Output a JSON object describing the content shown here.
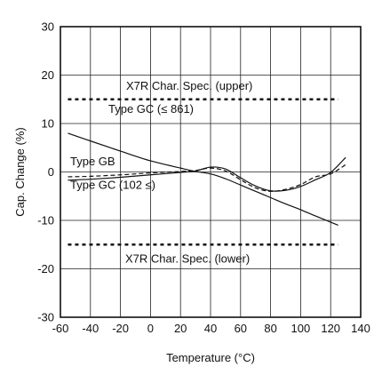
{
  "chart_data": {
    "type": "line",
    "title": "",
    "xlabel": "Temperature (°C)",
    "ylabel": "Cap. Change (%)",
    "xlim": [
      -60,
      140
    ],
    "ylim": [
      -30,
      30
    ],
    "x_ticks": [
      -60,
      -40,
      -20,
      0,
      20,
      40,
      60,
      80,
      100,
      120,
      140
    ],
    "y_ticks": [
      -30,
      -20,
      -10,
      0,
      10,
      20,
      30
    ],
    "grid": true,
    "legend": "none",
    "series": [
      {
        "name": "Type GC (≤ 861)",
        "style": "solid",
        "color": "#111111",
        "x": [
          -55,
          -40,
          -20,
          0,
          20,
          30,
          40,
          50,
          60,
          70,
          80,
          90,
          100,
          110,
          125
        ],
        "y": [
          8,
          6.4,
          4.3,
          2.3,
          0.8,
          0.1,
          -0.4,
          -1.4,
          -2.7,
          -4.0,
          -5.3,
          -6.6,
          -7.8,
          -9.1,
          -11
        ]
      },
      {
        "name": "Type GB",
        "style": "dashed",
        "color": "#111111",
        "x": [
          -55,
          -40,
          -20,
          0,
          20,
          30,
          40,
          50,
          60,
          70,
          80,
          90,
          100,
          110,
          120,
          130
        ],
        "y": [
          -1.0,
          -0.9,
          -0.6,
          -0.2,
          0.1,
          0.3,
          0.8,
          0.2,
          -1.6,
          -3.3,
          -4.0,
          -3.6,
          -2.6,
          -1.0,
          -0.4,
          1.5
        ]
      },
      {
        "name": "Type GC (102 ≤)",
        "style": "solid",
        "color": "#111111",
        "x": [
          -55,
          -40,
          -20,
          0,
          20,
          30,
          40,
          50,
          60,
          70,
          80,
          90,
          100,
          110,
          120,
          130
        ],
        "y": [
          -1.7,
          -1.5,
          -1.1,
          -0.6,
          -0.1,
          0.2,
          1.0,
          0.6,
          -1.2,
          -2.9,
          -3.9,
          -3.8,
          -3.0,
          -1.6,
          -0.1,
          3.0
        ]
      }
    ],
    "reference_lines": [
      {
        "label": "X7R Char. Spec. (upper)",
        "y": 15,
        "x": [
          -55,
          125
        ],
        "style": "dotted"
      },
      {
        "label": "X7R Char. Spec. (lower)",
        "y": -15,
        "x": [
          -55,
          125
        ],
        "style": "dotted"
      }
    ],
    "annotations": [
      {
        "text": "X7R Char. Spec. (upper)"
      },
      {
        "text": "Type GC (≤ 861)"
      },
      {
        "text": "Type GB"
      },
      {
        "text": "Type GC (102 ≤)"
      },
      {
        "text": "X7R Char. Spec. (lower)"
      }
    ]
  }
}
